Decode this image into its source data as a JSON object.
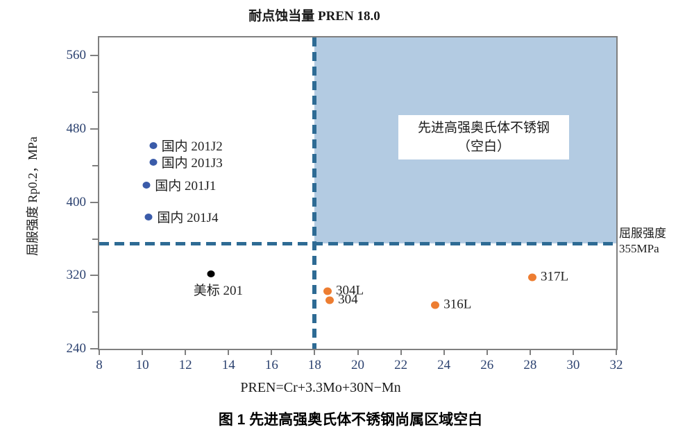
{
  "figure": {
    "top_title": "耐点蚀当量 PREN 18.0",
    "caption": "图 1 先进高强奥氏体不锈钢尚属区域空白"
  },
  "chart_data": {
    "type": "scatter",
    "title": "耐点蚀当量 PREN 18.0",
    "xlabel": "PREN=Cr+3.3Mo+30N−Mn",
    "ylabel": "屈服强度 Rp0.2，MPa",
    "xlim": [
      8,
      32
    ],
    "ylim": [
      240,
      580
    ],
    "x_ticks": [
      8,
      10,
      12,
      14,
      16,
      18,
      20,
      22,
      24,
      26,
      28,
      30,
      32
    ],
    "y_ticks": [
      240,
      320,
      400,
      480,
      560
    ],
    "y_minor_ticks": [
      280,
      360,
      440,
      520
    ],
    "grid": false,
    "colors": {
      "domestic_series": "#3a5ba9",
      "us_standard_series": "#000000",
      "conventional_series": "#ed7d31",
      "threshold_dash": "#2e6b94",
      "region_fill": "#b3cbe2",
      "axis": "#7f7f7f"
    },
    "series": [
      {
        "name": "domestic-201-steels",
        "color": "#3a5ba9",
        "dot_size": 11,
        "points": [
          {
            "label": "国内 201J2",
            "x": 10.5,
            "y": 462
          },
          {
            "label": "国内 201J3",
            "x": 10.5,
            "y": 444
          },
          {
            "label": "国内 201J1",
            "x": 10.2,
            "y": 419
          },
          {
            "label": "国内 201J4",
            "x": 10.3,
            "y": 384
          }
        ]
      },
      {
        "name": "us-standard-201",
        "color": "#000000",
        "dot_size": 11,
        "points": [
          {
            "label": "美标 201",
            "x": 13.2,
            "y": 322,
            "label_pos": "below"
          }
        ]
      },
      {
        "name": "conventional-300-series",
        "color": "#ed7d31",
        "dot_size": 12,
        "points": [
          {
            "label": "304L",
            "x": 18.6,
            "y": 303
          },
          {
            "label": "304",
            "x": 18.7,
            "y": 293
          },
          {
            "label": "316L",
            "x": 23.6,
            "y": 288
          },
          {
            "label": "317L",
            "x": 28.1,
            "y": 318
          }
        ]
      }
    ],
    "thresholds": {
      "vertical": {
        "x": 18,
        "label": "耐点蚀当量 PREN 18.0"
      },
      "horizontal": {
        "y": 355,
        "label": "屈服强度 355MPa",
        "label_lines": [
          "屈服强度",
          "355MPa"
        ]
      }
    },
    "shaded_region": {
      "x_from": 18,
      "x_to": 32,
      "y_from": 355,
      "y_to": 580,
      "color": "#b3cbe2",
      "label": "先进高强奥氏体不锈钢（空白）",
      "label_lines": [
        "先进高强奥氏体不锈钢",
        "（空白）"
      ]
    }
  }
}
